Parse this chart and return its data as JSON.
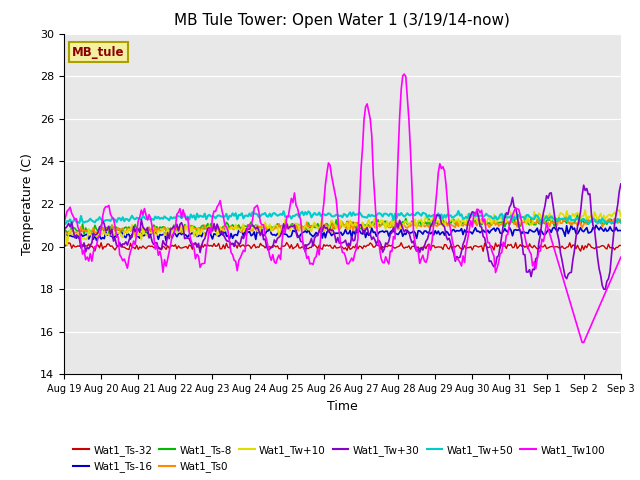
{
  "title": "MB Tule Tower: Open Water 1 (3/19/14-now)",
  "xlabel": "Time",
  "ylabel": "Temperature (C)",
  "ylim": [
    14,
    30
  ],
  "yticks": [
    14,
    16,
    18,
    20,
    22,
    24,
    26,
    28,
    30
  ],
  "background_color": "#e8e8e8",
  "legend_label": "MB_tule",
  "series_colors": {
    "Wat1_Ts-32": "#cc0000",
    "Wat1_Ts-16": "#0000cc",
    "Wat1_Ts-8": "#00bb00",
    "Wat1_Ts0": "#ff8800",
    "Wat1_Tw+10": "#dddd00",
    "Wat1_Tw+30": "#8800cc",
    "Wat1_Tw+50": "#00cccc",
    "Wat1_Tw100": "#ff00ff"
  },
  "day_labels": [
    "Aug 19",
    "Aug 20",
    "Aug 21",
    "Aug 22",
    "Aug 23",
    "Aug 24",
    "Aug 25",
    "Aug 26",
    "Aug 27",
    "Aug 28",
    "Aug 29",
    "Aug 30",
    "Aug 31",
    "Sep 1",
    "Sep 2",
    "Sep 3"
  ]
}
